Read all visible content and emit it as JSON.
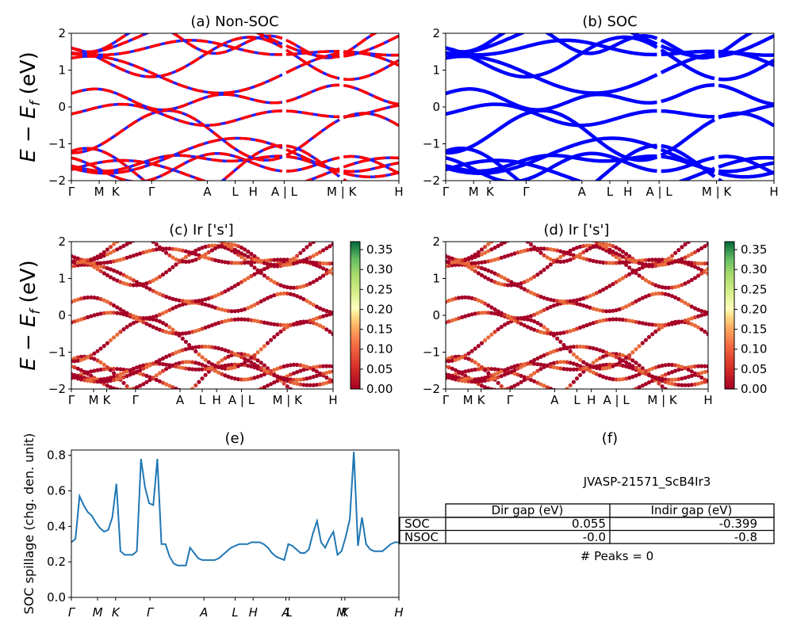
{
  "bands_y_ticks": [
    "−2",
    "−1",
    "0",
    "1",
    "2"
  ],
  "bands_ylabel": "E − E",
  "bands_ylabel_sub": "f",
  "bands_ylabel_unit": " (eV)",
  "kpath_labels_top": [
    "Γ",
    "M",
    "K",
    "Γ",
    "A",
    "L",
    "H",
    "A | L",
    "M | K",
    "H"
  ],
  "kpath_labels_mid": [
    "Γ",
    "M",
    "K",
    "Γ",
    "A",
    "L",
    "H",
    "A | L",
    "M | K",
    "H"
  ],
  "kpath_labels_spill": [
    "Γ",
    "M",
    "K",
    "Γ",
    "A",
    "L",
    "H",
    "A",
    "L",
    "M",
    "K",
    "H"
  ],
  "colorbar_ticks": [
    "0.00",
    "0.05",
    "0.10",
    "0.15",
    "0.20",
    "0.25",
    "0.30",
    "0.35"
  ],
  "colors": {
    "non_soc_a": "#ff0000",
    "non_soc_b": "#2222ff",
    "soc": "#0000ff",
    "spill": "#1f77b4"
  },
  "chart_data": [
    {
      "panel": "a",
      "type": "line",
      "title": "(a) Non-SOC",
      "ylim": [
        -2,
        2
      ],
      "xlabel": "",
      "ylabel": "E − E_f (eV)"
    },
    {
      "panel": "b",
      "type": "line",
      "title": "(b) SOC",
      "ylim": [
        -2,
        2
      ],
      "xlabel": "",
      "ylabel": ""
    },
    {
      "panel": "c",
      "type": "scatter",
      "title": "(c)  Ir ['s']",
      "ylim": [
        -2,
        2
      ],
      "colorbar": [
        0,
        0.37
      ],
      "colormap": "RdYlGn"
    },
    {
      "panel": "d",
      "type": "scatter",
      "title": "(d) Ir ['s']",
      "ylim": [
        -2,
        2
      ],
      "colorbar": [
        0,
        0.37
      ],
      "colormap": "RdYlGn"
    },
    {
      "panel": "e",
      "type": "line",
      "title": "(e)",
      "xlabel": "",
      "ylabel": "SOC spillage (chg. den. unit)",
      "ylim": [
        0.0,
        0.83
      ],
      "y_ticks": [
        "0.0",
        "0.2",
        "0.4",
        "0.6",
        "0.8"
      ],
      "x": [
        0,
        0.5,
        1,
        1.5,
        2,
        2.5,
        3,
        3.5,
        4,
        4.5,
        5,
        5.5,
        6,
        6.5,
        7,
        7.5,
        8,
        8.5,
        9,
        9.5,
        10,
        10.5,
        11,
        11.5,
        12,
        12.5,
        13,
        13.5,
        14,
        14.5,
        15,
        15.5,
        16,
        16.5,
        17,
        17.5,
        18,
        18.5,
        19,
        19.5,
        20,
        20.5,
        21,
        21.5,
        22,
        22.5,
        23,
        23.5,
        24,
        24.5,
        25,
        25.5,
        26,
        26.5,
        27,
        27.5,
        28,
        28.5,
        29,
        29.5,
        30,
        30.5,
        31,
        31.5,
        32,
        32.5,
        33,
        33.5,
        34,
        34.5,
        35,
        35.5,
        36,
        36.5,
        37,
        37.5,
        38,
        38.5,
        39,
        39.5,
        40
      ],
      "values": [
        0.31,
        0.33,
        0.57,
        0.52,
        0.48,
        0.46,
        0.42,
        0.39,
        0.37,
        0.38,
        0.45,
        0.64,
        0.26,
        0.24,
        0.24,
        0.24,
        0.26,
        0.78,
        0.62,
        0.53,
        0.52,
        0.78,
        0.3,
        0.3,
        0.23,
        0.19,
        0.18,
        0.18,
        0.18,
        0.28,
        0.25,
        0.22,
        0.21,
        0.21,
        0.21,
        0.21,
        0.22,
        0.24,
        0.26,
        0.28,
        0.29,
        0.3,
        0.3,
        0.3,
        0.31,
        0.31,
        0.31,
        0.3,
        0.28,
        0.25,
        0.23,
        0.22,
        0.21,
        0.3,
        0.29,
        0.27,
        0.25,
        0.25,
        0.27,
        0.36,
        0.43,
        0.31,
        0.28,
        0.33,
        0.37,
        0.24,
        0.26,
        0.34,
        0.44,
        0.82,
        0.29,
        0.45,
        0.3,
        0.27,
        0.26,
        0.26,
        0.26,
        0.28,
        0.3,
        0.31,
        0.31
      ]
    }
  ],
  "panel_f": {
    "title": "(f)",
    "material": "JVASP-21571_ScB4Ir3",
    "columns": [
      "",
      "Dir gap (eV)",
      "Indir gap (eV)"
    ],
    "rows": [
      {
        "label": "SOC",
        "dir": "0.055",
        "indir": "-0.399"
      },
      {
        "label": "NSOC",
        "dir": "-0.0",
        "indir": "-0.8"
      }
    ],
    "peaks": "# Peaks = 0"
  }
}
